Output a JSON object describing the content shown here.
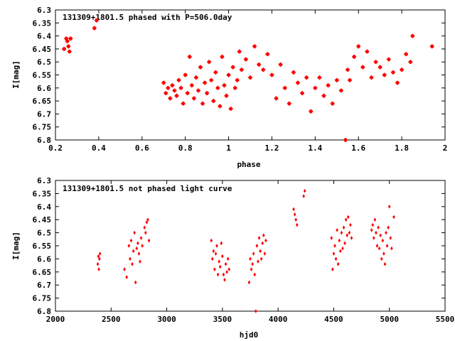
{
  "chart_data": [
    {
      "type": "scatter",
      "title": "131309+1801.5 phased with P=506.0day",
      "xlabel": "phase",
      "ylabel": "I[mag]",
      "xlim": [
        0.2,
        2.0
      ],
      "ylim": [
        6.8,
        6.3
      ],
      "y_inverted": true,
      "xticks": [
        "0.2",
        "0.4",
        "0.6",
        "0.8",
        "1",
        "1.2",
        "1.4",
        "1.6",
        "1.8",
        "2"
      ],
      "yticks": [
        "6.3",
        "6.35",
        "6.4",
        "6.45",
        "6.5",
        "6.55",
        "6.6",
        "6.65",
        "6.7",
        "6.75",
        "6.8"
      ],
      "grid": false,
      "marker_color": "#ff0000",
      "series": [
        {
          "x": [
            0.24,
            0.25,
            0.255,
            0.26,
            0.265,
            0.27,
            0.38,
            0.39,
            0.7,
            0.71,
            0.72,
            0.73,
            0.74,
            0.75,
            0.76,
            0.77,
            0.78,
            0.79,
            0.8,
            0.81,
            0.82,
            0.83,
            0.84,
            0.85,
            0.86,
            0.87,
            0.88,
            0.89,
            0.9,
            0.91,
            0.92,
            0.93,
            0.94,
            0.95,
            0.96,
            0.97,
            0.98,
            0.99,
            1.0,
            1.01,
            1.02,
            1.03,
            1.04,
            1.05,
            1.06,
            1.08,
            1.1,
            1.12,
            1.14,
            1.16,
            1.18,
            1.2,
            1.22,
            1.24,
            1.26,
            1.28,
            1.3,
            1.32,
            1.34,
            1.36,
            1.38,
            1.4,
            1.42,
            1.44,
            1.46,
            1.48,
            1.5,
            1.52,
            1.54,
            1.55,
            1.56,
            1.58,
            1.6,
            1.62,
            1.64,
            1.66,
            1.68,
            1.7,
            1.72,
            1.74,
            1.76,
            1.78,
            1.8,
            1.82,
            1.84,
            1.85,
            1.94
          ],
          "y": [
            6.45,
            6.41,
            6.42,
            6.44,
            6.46,
            6.41,
            6.37,
            6.34,
            6.58,
            6.62,
            6.6,
            6.64,
            6.59,
            6.61,
            6.63,
            6.57,
            6.6,
            6.66,
            6.55,
            6.62,
            6.48,
            6.59,
            6.64,
            6.56,
            6.61,
            6.52,
            6.66,
            6.58,
            6.62,
            6.5,
            6.57,
            6.65,
            6.54,
            6.6,
            6.67,
            6.48,
            6.59,
            6.63,
            6.55,
            6.68,
            6.52,
            6.6,
            6.57,
            6.46,
            6.53,
            6.49,
            6.56,
            6.44,
            6.51,
            6.53,
            6.47,
            6.55,
            6.64,
            6.51,
            6.6,
            6.66,
            6.54,
            6.58,
            6.62,
            6.56,
            6.69,
            6.6,
            6.56,
            6.63,
            6.59,
            6.66,
            6.57,
            6.61,
            6.8,
            6.53,
            6.57,
            6.48,
            6.44,
            6.52,
            6.46,
            6.56,
            6.5,
            6.52,
            6.55,
            6.49,
            6.54,
            6.58,
            6.53,
            6.47,
            6.5,
            6.4,
            6.44
          ]
        }
      ]
    },
    {
      "type": "scatter",
      "title": "131309+1801.5 not phased light curve",
      "xlabel": "hjd0",
      "ylabel": "I[mag]",
      "xlim": [
        2000,
        5500
      ],
      "ylim": [
        6.8,
        6.3
      ],
      "y_inverted": true,
      "xticks": [
        "2000",
        "2500",
        "3000",
        "3500",
        "4000",
        "4500",
        "5000",
        "5500"
      ],
      "yticks": [
        "6.3",
        "6.35",
        "6.4",
        "6.45",
        "6.5",
        "6.55",
        "6.6",
        "6.65",
        "6.7",
        "6.75",
        "6.8"
      ],
      "grid": false,
      "marker_color": "#ff0000",
      "series": [
        {
          "x": [
            2380,
            2385,
            2390,
            2395,
            2400,
            2620,
            2640,
            2660,
            2670,
            2680,
            2690,
            2700,
            2710,
            2720,
            2730,
            2740,
            2750,
            2760,
            2770,
            2780,
            2800,
            2810,
            2820,
            2830,
            2840,
            3400,
            3410,
            3420,
            3430,
            3440,
            3450,
            3460,
            3470,
            3480,
            3490,
            3500,
            3510,
            3520,
            3530,
            3540,
            3550,
            3560,
            3740,
            3750,
            3760,
            3770,
            3780,
            3790,
            3800,
            3810,
            3820,
            3830,
            3840,
            3850,
            3860,
            3870,
            3880,
            3890,
            4140,
            4150,
            4160,
            4170,
            4230,
            4240,
            4480,
            4490,
            4500,
            4510,
            4520,
            4530,
            4540,
            4550,
            4560,
            4570,
            4580,
            4590,
            4600,
            4610,
            4620,
            4630,
            4640,
            4650,
            4660,
            4840,
            4850,
            4860,
            4870,
            4880,
            4890,
            4900,
            4910,
            4920,
            4930,
            4940,
            4950,
            4960,
            4970,
            4980,
            4990,
            5000,
            5010,
            5020,
            5040
          ],
          "y": [
            6.62,
            6.59,
            6.64,
            6.6,
            6.58,
            6.64,
            6.67,
            6.55,
            6.6,
            6.53,
            6.62,
            6.57,
            6.5,
            6.69,
            6.56,
            6.54,
            6.58,
            6.61,
            6.52,
            6.55,
            6.48,
            6.5,
            6.46,
            6.45,
            6.53,
            6.53,
            6.6,
            6.57,
            6.64,
            6.58,
            6.55,
            6.66,
            6.61,
            6.63,
            6.54,
            6.59,
            6.66,
            6.68,
            6.62,
            6.65,
            6.6,
            6.64,
            6.69,
            6.6,
            6.64,
            6.62,
            6.58,
            6.66,
            6.8,
            6.55,
            6.61,
            6.52,
            6.57,
            6.6,
            6.54,
            6.51,
            6.58,
            6.53,
            6.41,
            6.43,
            6.45,
            6.47,
            6.36,
            6.34,
            6.52,
            6.64,
            6.58,
            6.55,
            6.6,
            6.49,
            6.62,
            6.53,
            6.57,
            6.5,
            6.56,
            6.48,
            6.54,
            6.45,
            6.51,
            6.44,
            6.5,
            6.47,
            6.52,
            6.49,
            6.47,
            6.52,
            6.45,
            6.5,
            6.55,
            6.48,
            6.56,
            6.51,
            6.6,
            6.53,
            6.58,
            6.62,
            6.5,
            6.55,
            6.48,
            6.4,
            6.52,
            6.56,
            6.44
          ]
        }
      ]
    }
  ]
}
